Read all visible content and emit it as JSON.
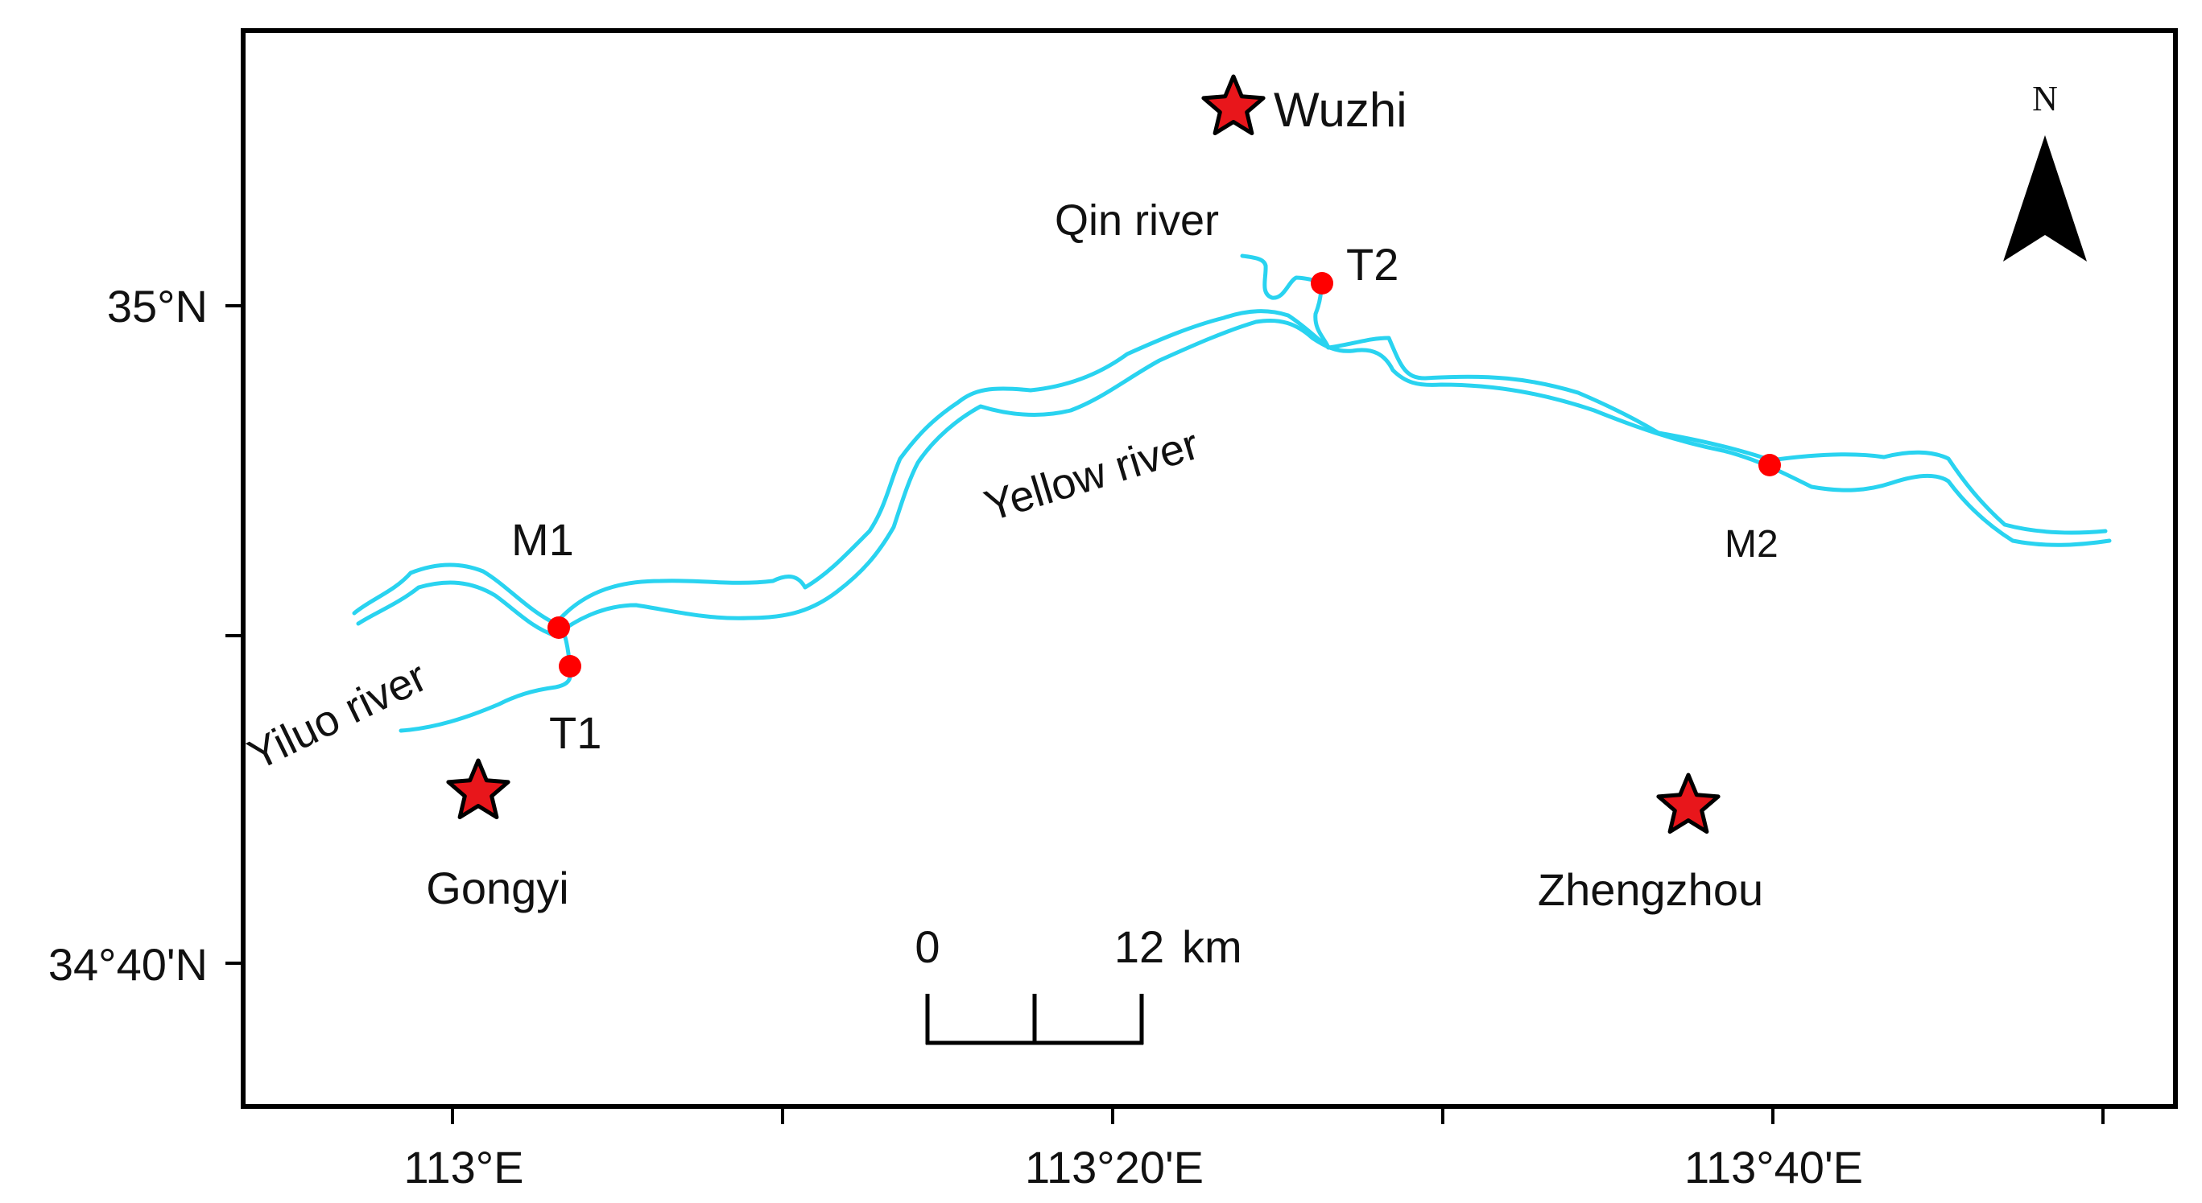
{
  "axes": {
    "lat_labels": [
      "35°N",
      "34°40'N"
    ],
    "lon_labels": [
      "113°E",
      "113°20'E",
      "113°40'E"
    ]
  },
  "north_arrow": {
    "label": "N"
  },
  "cities": [
    {
      "name": "Wuzhi"
    },
    {
      "name": "Gongyi"
    },
    {
      "name": "Zhengzhou"
    }
  ],
  "rivers": [
    {
      "name": "Qin river"
    },
    {
      "name": "Yellow river"
    },
    {
      "name": "Yiluo river"
    }
  ],
  "stations": [
    {
      "name": "T2"
    },
    {
      "name": "M1"
    },
    {
      "name": "T1"
    },
    {
      "name": "M2"
    }
  ],
  "scale_bar": {
    "start": "0",
    "end": "12",
    "unit": "km"
  },
  "colors": {
    "river": "#29d3f0",
    "station": "#ff0000",
    "star": "#e8161b"
  }
}
